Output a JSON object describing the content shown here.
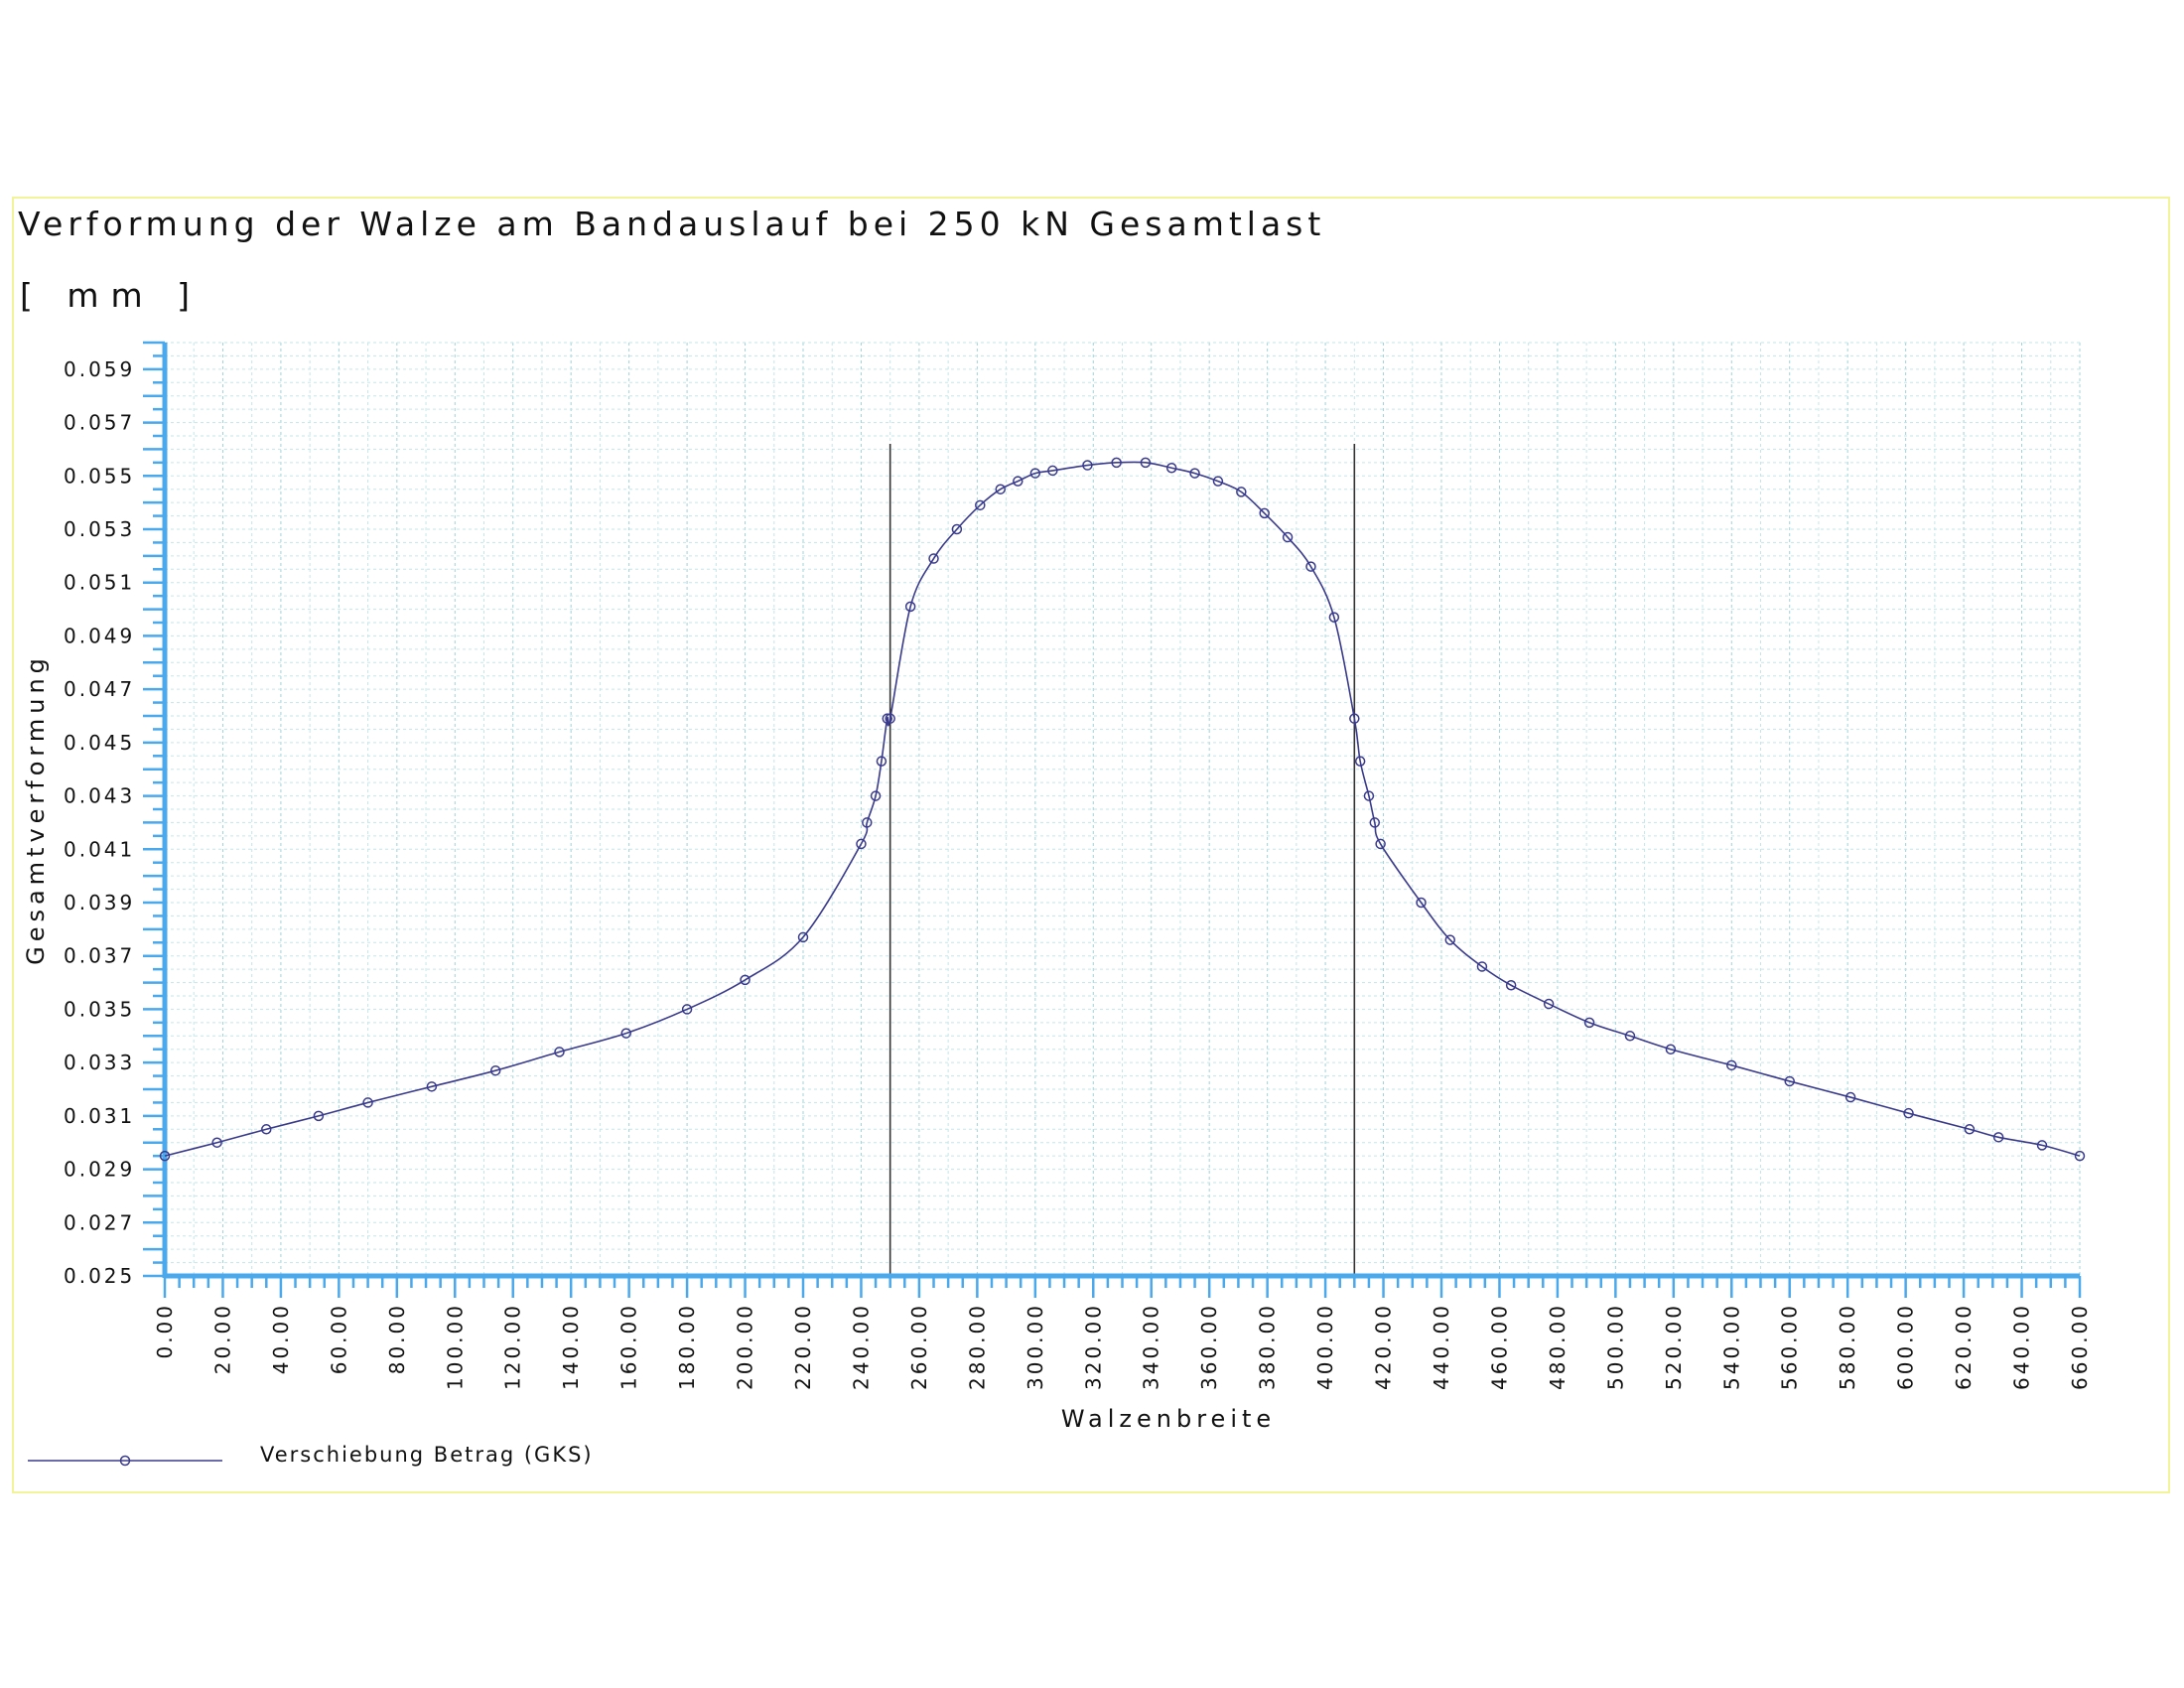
{
  "chart_data": {
    "type": "line",
    "title": "Verformung der Walze am Bandauslauf bei 250 kN Gesamtlast",
    "unit": "[ mm ]",
    "xlabel": "Walzenbreite",
    "ylabel": "Gesamtverformung",
    "xlim": [
      0,
      660
    ],
    "ylim": [
      0.025,
      0.06
    ],
    "x_ticks": [
      "0.00",
      "20.00",
      "40.00",
      "60.00",
      "80.00",
      "100.00",
      "120.00",
      "140.00",
      "160.00",
      "180.00",
      "200.00",
      "220.00",
      "240.00",
      "260.00",
      "280.00",
      "300.00",
      "320.00",
      "340.00",
      "360.00",
      "380.00",
      "400.00",
      "420.00",
      "440.00",
      "460.00",
      "480.00",
      "500.00",
      "520.00",
      "540.00",
      "560.00",
      "580.00",
      "600.00",
      "620.00",
      "640.00",
      "660.00"
    ],
    "y_ticks": [
      "0.025",
      "0.027",
      "0.029",
      "0.031",
      "0.033",
      "0.035",
      "0.037",
      "0.039",
      "0.041",
      "0.043",
      "0.045",
      "0.047",
      "0.049",
      "0.051",
      "0.053",
      "0.055",
      "0.057",
      "0.059"
    ],
    "grid": true,
    "legend_position": "bottom-left",
    "vertical_markers": [
      250,
      410
    ],
    "series": [
      {
        "name": "Verschiebung Betrag (GKS)",
        "color": "#3a3a8c",
        "marker": "circle",
        "x": [
          0,
          18,
          35,
          53,
          70,
          92,
          114,
          136,
          159,
          180,
          200,
          220,
          240,
          242,
          245,
          247,
          249,
          250,
          257,
          265,
          273,
          281,
          288,
          294,
          300,
          306,
          318,
          328,
          338,
          347,
          355,
          363,
          371,
          379,
          387,
          395,
          403,
          410,
          412,
          415,
          417,
          419,
          433,
          443,
          454,
          464,
          477,
          491,
          505,
          519,
          540,
          560,
          581,
          601,
          622,
          632,
          647,
          660
        ],
        "y": [
          0.0295,
          0.03,
          0.0305,
          0.031,
          0.0315,
          0.0321,
          0.0327,
          0.0334,
          0.0341,
          0.035,
          0.0361,
          0.0377,
          0.0412,
          0.042,
          0.043,
          0.0443,
          0.0459,
          0.0459,
          0.0501,
          0.0519,
          0.053,
          0.0539,
          0.0545,
          0.0548,
          0.0551,
          0.0552,
          0.0554,
          0.0555,
          0.0555,
          0.0553,
          0.0551,
          0.0548,
          0.0544,
          0.0536,
          0.0527,
          0.0516,
          0.0497,
          0.0459,
          0.0443,
          0.043,
          0.042,
          0.0412,
          0.039,
          0.0376,
          0.0366,
          0.0359,
          0.0352,
          0.0345,
          0.034,
          0.0335,
          0.0329,
          0.0323,
          0.0317,
          0.0311,
          0.0305,
          0.0302,
          0.0299,
          0.0295
        ]
      }
    ]
  }
}
